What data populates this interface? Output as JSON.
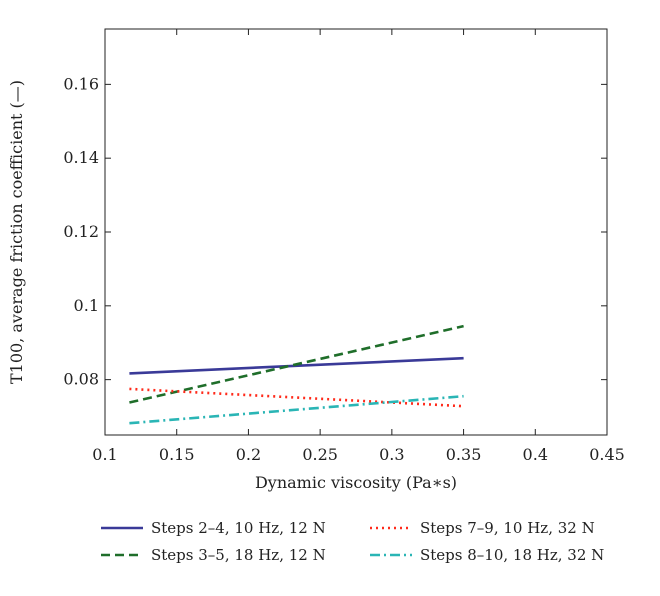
{
  "chart_data": {
    "type": "line",
    "xlabel": "Dynamic viscosity (Pa∗s)",
    "ylabel": "T100, average friction coefficient (—)",
    "xlim": [
      0.1,
      0.45
    ],
    "ylim": [
      0.065,
      0.175
    ],
    "xticks": [
      "0.1",
      "0.15",
      "0.2",
      "0.25",
      "0.3",
      "0.35",
      "0.4",
      "0.45"
    ],
    "yticks": [
      "0.08",
      "0.1",
      "0.12",
      "0.14",
      "0.16"
    ],
    "xtick_values": [
      0.1,
      0.15,
      0.2,
      0.25,
      0.3,
      0.35,
      0.4,
      0.45
    ],
    "ytick_values": [
      0.08,
      0.1,
      0.12,
      0.14,
      0.16
    ],
    "grid": false,
    "legend_position": "bottom",
    "series": [
      {
        "name": "Steps 2–4, 10 Hz, 12 N",
        "x": [
          0.117,
          0.35
        ],
        "y": [
          0.0817,
          0.0858
        ],
        "color": "#3a3a98",
        "dash": "solid"
      },
      {
        "name": "Steps 3–5, 18 Hz, 12 N",
        "x": [
          0.117,
          0.35
        ],
        "y": [
          0.0738,
          0.0945
        ],
        "color": "#1f6e2a",
        "dash": "dashed"
      },
      {
        "name": "Steps 7–9, 10 Hz, 32 N",
        "x": [
          0.117,
          0.35
        ],
        "y": [
          0.0775,
          0.0728
        ],
        "color": "#ff2a1a",
        "dash": "dotted"
      },
      {
        "name": "Steps 8–10, 18 Hz, 32 N",
        "x": [
          0.117,
          0.35
        ],
        "y": [
          0.0682,
          0.0755
        ],
        "color": "#2ab5b5",
        "dash": "dashdot"
      }
    ]
  }
}
